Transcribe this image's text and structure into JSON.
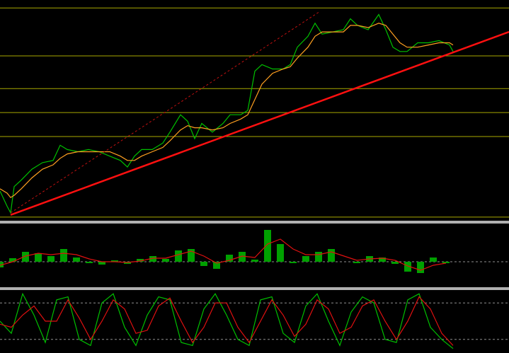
{
  "chart_data": [
    {
      "type": "line",
      "xlim": [
        0,
        719
      ],
      "ylim": [
        0,
        100
      ],
      "levels": [
        97,
        75,
        60,
        49,
        38,
        1
      ],
      "level_color": "#a8a800",
      "level_style": "solid",
      "x": [
        0,
        10,
        15,
        20,
        30,
        45,
        60,
        75,
        85,
        95,
        110,
        125,
        140,
        155,
        170,
        180,
        190,
        200,
        215,
        230,
        240,
        255,
        265,
        275,
        285,
        300,
        315,
        325,
        340,
        350,
        360,
        370,
        385,
        400,
        410,
        420,
        435,
        445,
        455,
        470,
        485,
        495,
        505,
        520,
        535,
        545,
        555,
        565,
        575,
        590,
        605,
        620,
        635,
        640
      ],
      "series": [
        {
          "color": "#00c000",
          "values": [
            13,
            6,
            3,
            15,
            18,
            23,
            26,
            27,
            34,
            32,
            31,
            32,
            31,
            29,
            27,
            24,
            29,
            32,
            32,
            35,
            40,
            48,
            45,
            37,
            44,
            40,
            44,
            48,
            48,
            50,
            68,
            71,
            69,
            69,
            71,
            79,
            84,
            90,
            85,
            86,
            87,
            92,
            89,
            87,
            94,
            87,
            79,
            77,
            77,
            81,
            81,
            82,
            80,
            77
          ]
        },
        {
          "color": "#ffa020",
          "values": [
            14,
            12,
            10,
            11,
            14,
            19,
            23,
            25,
            28,
            30,
            31,
            31,
            31,
            31,
            29,
            27,
            27,
            29,
            31,
            33,
            36,
            41,
            43,
            42,
            42,
            41,
            42,
            44,
            46,
            48,
            55,
            62,
            67,
            69,
            70,
            74,
            79,
            84,
            86,
            86,
            86,
            89,
            89,
            88,
            90,
            89,
            85,
            81,
            79,
            79,
            80,
            81,
            81,
            80
          ]
        }
      ],
      "trendlines": [
        {
          "x": [
            15,
            719
          ],
          "values": [
            2,
            86
          ],
          "color": "#ff1010",
          "style": "solid"
        },
        {
          "x": [
            15,
            450
          ],
          "values": [
            3,
            95
          ],
          "color": "#c01010",
          "style": "dashed"
        }
      ]
    },
    {
      "type": "bar",
      "xlim": [
        0,
        719
      ],
      "ylim": [
        -35,
        50
      ],
      "levels": [
        0
      ],
      "level_color": "#909090",
      "level_style": "dashed",
      "x": [
        0,
        18,
        36,
        54,
        72,
        90,
        108,
        126,
        144,
        162,
        180,
        198,
        216,
        234,
        252,
        270,
        288,
        306,
        324,
        342,
        360,
        378,
        396,
        414,
        432,
        450,
        468,
        486,
        504,
        522,
        540,
        558,
        576,
        594,
        612,
        630
      ],
      "series": [
        {
          "color": "#00a000",
          "style": "bar",
          "values": [
            -8,
            5,
            14,
            12,
            8,
            18,
            6,
            -2,
            -4,
            2,
            -3,
            4,
            8,
            4,
            16,
            18,
            -6,
            -10,
            10,
            14,
            3,
            45,
            25,
            -2,
            8,
            14,
            18,
            0,
            -2,
            8,
            6,
            -3,
            -14,
            -16,
            6,
            -2
          ]
        },
        {
          "color": "#e01010",
          "style": "line",
          "values": [
            -5,
            0,
            8,
            12,
            10,
            12,
            10,
            4,
            0,
            0,
            -1,
            1,
            5,
            5,
            10,
            15,
            8,
            -2,
            2,
            8,
            6,
            25,
            32,
            18,
            10,
            10,
            14,
            8,
            2,
            4,
            5,
            2,
            -6,
            -12,
            -5,
            -2
          ]
        }
      ]
    },
    {
      "type": "line",
      "xlim": [
        0,
        719
      ],
      "ylim": [
        0,
        100
      ],
      "levels": [
        80,
        20
      ],
      "level_color": "#909090",
      "level_style": "dashed",
      "x": [
        0,
        16,
        32,
        48,
        64,
        80,
        96,
        112,
        128,
        144,
        160,
        176,
        192,
        208,
        224,
        240,
        256,
        272,
        288,
        304,
        320,
        336,
        352,
        368,
        384,
        400,
        416,
        432,
        448,
        464,
        480,
        496,
        512,
        528,
        544,
        560,
        576,
        592,
        608,
        624,
        640
      ],
      "series": [
        {
          "color": "#00c000",
          "values": [
            50,
            30,
            95,
            60,
            15,
            85,
            90,
            20,
            10,
            80,
            95,
            40,
            10,
            60,
            90,
            85,
            15,
            10,
            70,
            95,
            60,
            20,
            10,
            85,
            90,
            30,
            15,
            75,
            95,
            50,
            10,
            65,
            90,
            80,
            20,
            15,
            85,
            95,
            40,
            20,
            5
          ]
        },
        {
          "color": "#e01010",
          "values": [
            45,
            40,
            60,
            75,
            50,
            50,
            85,
            55,
            20,
            50,
            85,
            70,
            30,
            35,
            75,
            88,
            50,
            15,
            40,
            80,
            80,
            40,
            15,
            50,
            85,
            60,
            25,
            45,
            85,
            70,
            30,
            40,
            75,
            85,
            50,
            20,
            50,
            90,
            70,
            30,
            10
          ]
        }
      ]
    }
  ]
}
